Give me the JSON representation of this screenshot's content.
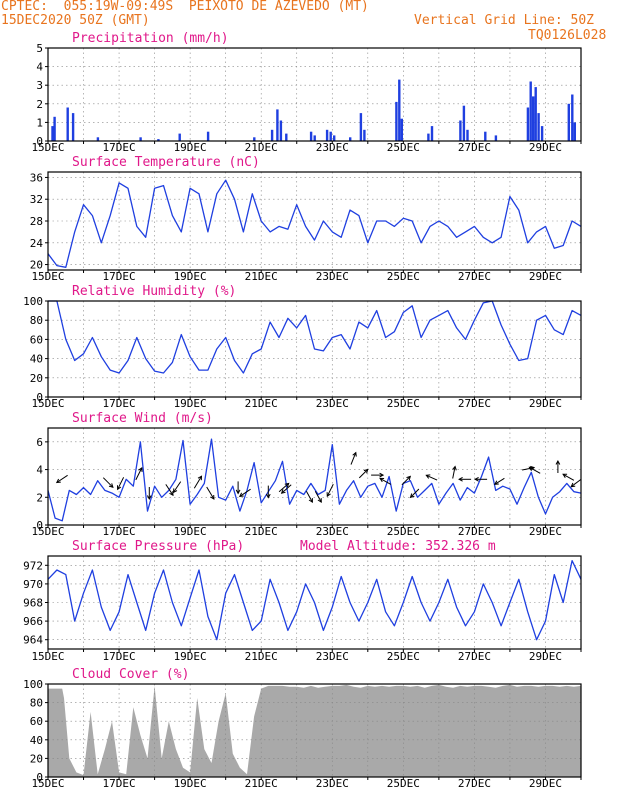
{
  "header": {
    "line1_left": "CPTEC:  055:19W-09:49S  PEIXOTO DE AZEVEDO (MT)",
    "line2_left": "15DEC2020 50Z (GMT)",
    "line2_right": "Vertical Grid Line: 50Z",
    "line3_right": "TQ0126L028"
  },
  "colors": {
    "header": "#e8741e",
    "title": "#e0188a",
    "series": "#1f3fe0",
    "bar": "#1f3fe0",
    "cloud": "#a9a9a9",
    "grid": "#888888"
  },
  "x_tick_labels": [
    "15DEC",
    "17DEC",
    "19DEC",
    "21DEC",
    "23DEC",
    "25DEC",
    "27DEC",
    "29DEC"
  ],
  "x_range_days": [
    15,
    30
  ],
  "chart_data": [
    {
      "type": "bar",
      "title": "Precipitation (mm/h)",
      "ylim": [
        0,
        5
      ],
      "yticks": [
        0,
        1,
        2,
        3,
        4,
        5
      ],
      "bars": [
        [
          15.12,
          0.8
        ],
        [
          15.18,
          1.3
        ],
        [
          15.55,
          1.8
        ],
        [
          15.7,
          1.5
        ],
        [
          16.4,
          0.2
        ],
        [
          17.6,
          0.2
        ],
        [
          18.1,
          0.1
        ],
        [
          18.7,
          0.4
        ],
        [
          19.5,
          0.5
        ],
        [
          20.8,
          0.2
        ],
        [
          21.3,
          0.6
        ],
        [
          21.45,
          1.7
        ],
        [
          21.55,
          1.1
        ],
        [
          21.7,
          0.4
        ],
        [
          22.4,
          0.5
        ],
        [
          22.5,
          0.3
        ],
        [
          22.85,
          0.6
        ],
        [
          22.95,
          0.5
        ],
        [
          23.05,
          0.3
        ],
        [
          23.5,
          0.2
        ],
        [
          23.8,
          1.5
        ],
        [
          23.9,
          0.6
        ],
        [
          24.8,
          2.1
        ],
        [
          24.88,
          3.3
        ],
        [
          24.95,
          1.2
        ],
        [
          25.7,
          0.4
        ],
        [
          25.8,
          0.8
        ],
        [
          26.6,
          1.1
        ],
        [
          26.7,
          1.9
        ],
        [
          26.8,
          0.6
        ],
        [
          27.3,
          0.5
        ],
        [
          27.6,
          0.3
        ],
        [
          28.5,
          1.8
        ],
        [
          28.58,
          3.2
        ],
        [
          28.65,
          2.4
        ],
        [
          28.72,
          2.9
        ],
        [
          28.8,
          1.5
        ],
        [
          28.9,
          0.8
        ],
        [
          29.65,
          2.0
        ],
        [
          29.75,
          2.5
        ],
        [
          29.82,
          1.0
        ]
      ]
    },
    {
      "type": "line",
      "title": "Surface Temperature (nC)",
      "ylim": [
        19,
        37
      ],
      "yticks": [
        20,
        24,
        28,
        32,
        36
      ],
      "x": [
        15,
        15.25,
        15.5,
        15.75,
        16,
        16.25,
        16.5,
        16.75,
        17,
        17.25,
        17.5,
        17.75,
        18,
        18.25,
        18.5,
        18.75,
        19,
        19.25,
        19.5,
        19.75,
        20,
        20.25,
        20.5,
        20.75,
        21,
        21.25,
        21.5,
        21.75,
        22,
        22.25,
        22.5,
        22.75,
        23,
        23.25,
        23.5,
        23.75,
        24,
        24.25,
        24.5,
        24.75,
        25,
        25.25,
        25.5,
        25.75,
        26,
        26.25,
        26.5,
        26.75,
        27,
        27.25,
        27.5,
        27.75,
        28,
        28.25,
        28.5,
        28.75,
        29,
        29.25,
        29.5,
        29.75,
        30
      ],
      "y": [
        22,
        19.8,
        19.5,
        26,
        31,
        29,
        24,
        29,
        35,
        34,
        27,
        25,
        34,
        34.5,
        29,
        26,
        34,
        33,
        26,
        33,
        35.5,
        32,
        26,
        33,
        28,
        26,
        27,
        26.5,
        31,
        27,
        24.5,
        28,
        26,
        25,
        30,
        29,
        24,
        28,
        28,
        27,
        28.5,
        28,
        24,
        27,
        28,
        27,
        25,
        26,
        27,
        25,
        24,
        25,
        32.5,
        30,
        24,
        26,
        27,
        23,
        23.5,
        28,
        27
      ]
    },
    {
      "type": "line",
      "title": "Relative Humidity (%)",
      "ylim": [
        0,
        100
      ],
      "yticks": [
        0,
        20,
        40,
        60,
        80,
        100
      ],
      "x": [
        15,
        15.25,
        15.5,
        15.75,
        16,
        16.25,
        16.5,
        16.75,
        17,
        17.25,
        17.5,
        17.75,
        18,
        18.25,
        18.5,
        18.75,
        19,
        19.25,
        19.5,
        19.75,
        20,
        20.25,
        20.5,
        20.75,
        21,
        21.25,
        21.5,
        21.75,
        22,
        22.25,
        22.5,
        22.75,
        23,
        23.25,
        23.5,
        23.75,
        24,
        24.25,
        24.5,
        24.75,
        25,
        25.25,
        25.5,
        25.75,
        26,
        26.25,
        26.5,
        26.75,
        27,
        27.25,
        27.5,
        27.75,
        28,
        28.25,
        28.5,
        28.75,
        29,
        29.25,
        29.5,
        29.75,
        30
      ],
      "y": [
        100,
        100,
        60,
        38,
        45,
        62,
        42,
        28,
        25,
        38,
        62,
        40,
        27,
        25,
        36,
        65,
        42,
        28,
        28,
        50,
        62,
        38,
        25,
        45,
        50,
        78,
        62,
        82,
        72,
        85,
        50,
        48,
        62,
        65,
        50,
        78,
        72,
        90,
        62,
        68,
        88,
        95,
        62,
        80,
        85,
        90,
        72,
        60,
        80,
        98,
        100,
        75,
        55,
        38,
        40,
        80,
        85,
        70,
        65,
        90,
        85
      ]
    },
    {
      "type": "line",
      "title": "Surface Wind (m/s)",
      "ylim": [
        0,
        7
      ],
      "yticks": [
        0,
        2,
        4,
        6
      ],
      "x": [
        15,
        15.2,
        15.4,
        15.6,
        15.8,
        16,
        16.2,
        16.4,
        16.6,
        16.8,
        17,
        17.2,
        17.4,
        17.6,
        17.8,
        18,
        18.2,
        18.4,
        18.6,
        18.8,
        19,
        19.2,
        19.4,
        19.6,
        19.8,
        20,
        20.2,
        20.4,
        20.6,
        20.8,
        21,
        21.2,
        21.4,
        21.6,
        21.8,
        22,
        22.2,
        22.4,
        22.6,
        22.8,
        23,
        23.2,
        23.4,
        23.6,
        23.8,
        24,
        24.2,
        24.4,
        24.6,
        24.8,
        25,
        25.2,
        25.4,
        25.6,
        25.8,
        26,
        26.2,
        26.4,
        26.6,
        26.8,
        27,
        27.2,
        27.4,
        27.6,
        27.8,
        28,
        28.2,
        28.4,
        28.6,
        28.8,
        29,
        29.2,
        29.4,
        29.6,
        29.8,
        30
      ],
      "y": [
        2.5,
        0.5,
        0.3,
        2.5,
        2.2,
        2.7,
        2.2,
        3.2,
        2.5,
        2.3,
        2.0,
        3.3,
        2.8,
        6.0,
        1.0,
        2.8,
        2.0,
        2.5,
        3.3,
        6.1,
        1.5,
        2.2,
        3.0,
        6.2,
        2.0,
        1.8,
        2.8,
        1.0,
        2.5,
        4.5,
        1.6,
        2.4,
        3.2,
        4.6,
        1.5,
        2.5,
        2.2,
        3.0,
        2.2,
        2.5,
        5.8,
        1.5,
        2.5,
        3.2,
        2.0,
        2.8,
        3.0,
        2.0,
        3.5,
        1.0,
        3.0,
        3.2,
        2.0,
        2.5,
        3.0,
        1.5,
        2.3,
        3.0,
        1.8,
        2.7,
        2.3,
        3.5,
        4.9,
        2.5,
        2.8,
        2.6,
        1.5,
        2.7,
        3.8,
        2.0,
        0.8,
        2.0,
        2.4,
        3.0,
        2.4,
        2.3
      ],
      "arrows": [
        [
          15.5,
          3.5,
          -0.9,
          -0.6
        ],
        [
          16.6,
          3.3,
          0.8,
          -0.8
        ],
        [
          17.1,
          3.3,
          -0.5,
          -1.0
        ],
        [
          17.5,
          3.4,
          0.5,
          1.0
        ],
        [
          17.85,
          2.6,
          0,
          -1.0
        ],
        [
          18.35,
          2.8,
          0.6,
          -0.9
        ],
        [
          18.7,
          3.0,
          -0.6,
          -0.9
        ],
        [
          19.15,
          2.8,
          0.6,
          1.0
        ],
        [
          19.5,
          2.6,
          0.6,
          -1.0
        ],
        [
          20.35,
          3.0,
          0,
          -1.0
        ],
        [
          20.65,
          2.5,
          -0.9,
          -0.6
        ],
        [
          21.2,
          2.7,
          0,
          -1.0
        ],
        [
          21.55,
          2.5,
          0.8,
          0.7
        ],
        [
          21.8,
          2.8,
          -0.8,
          -0.7
        ],
        [
          22.3,
          2.3,
          0.5,
          -0.9
        ],
        [
          22.55,
          2.3,
          0.5,
          -0.9
        ],
        [
          23.0,
          2.8,
          -0.5,
          -1.0
        ],
        [
          23.55,
          4.5,
          0.4,
          1.0
        ],
        [
          23.8,
          3.5,
          0.7,
          0.7
        ],
        [
          24.15,
          3.6,
          1.0,
          0
        ],
        [
          24.6,
          3.0,
          -0.9,
          0.5
        ],
        [
          25.0,
          3.0,
          0.7,
          0.7
        ],
        [
          25.4,
          2.5,
          -0.7,
          -0.7
        ],
        [
          25.9,
          3.3,
          -0.9,
          0.4
        ],
        [
          26.4,
          3.5,
          0.2,
          1.0
        ],
        [
          26.85,
          3.3,
          -1.0,
          0
        ],
        [
          27.3,
          3.3,
          -1.0,
          0
        ],
        [
          27.8,
          3.3,
          -0.8,
          -0.5
        ],
        [
          28.4,
          4.0,
          1.0,
          0.2
        ],
        [
          28.8,
          3.8,
          -0.9,
          0.5
        ],
        [
          29.35,
          3.9,
          0,
          1.0
        ],
        [
          29.75,
          3.3,
          -0.9,
          0.5
        ],
        [
          29.95,
          3.2,
          -0.8,
          -0.6
        ]
      ]
    },
    {
      "type": "line",
      "title": "Surface Pressure (hPa)",
      "subtitle": "Model Altitude: 352.326 m",
      "ylim": [
        963,
        973
      ],
      "yticks": [
        964,
        966,
        968,
        970,
        972
      ],
      "x": [
        15,
        15.25,
        15.5,
        15.75,
        16,
        16.25,
        16.5,
        16.75,
        17,
        17.25,
        17.5,
        17.75,
        18,
        18.25,
        18.5,
        18.75,
        19,
        19.25,
        19.5,
        19.75,
        20,
        20.25,
        20.5,
        20.75,
        21,
        21.25,
        21.5,
        21.75,
        22,
        22.25,
        22.5,
        22.75,
        23,
        23.25,
        23.5,
        23.75,
        24,
        24.25,
        24.5,
        24.75,
        25,
        25.25,
        25.5,
        25.75,
        26,
        26.25,
        26.5,
        26.75,
        27,
        27.25,
        27.5,
        27.75,
        28,
        28.25,
        28.5,
        28.75,
        29,
        29.25,
        29.5,
        29.75,
        30
      ],
      "y": [
        970.5,
        971.5,
        971,
        966,
        969,
        971.5,
        967.5,
        965,
        967,
        971,
        968,
        965,
        969,
        971.5,
        968,
        965.5,
        968.5,
        971.5,
        966.5,
        964,
        969,
        971,
        968,
        965,
        966,
        970.5,
        968,
        965,
        967,
        970,
        968,
        965,
        967.5,
        970.8,
        968,
        966,
        968,
        970.5,
        967,
        965.5,
        968,
        970.8,
        968,
        966,
        968,
        970.5,
        967.5,
        965.5,
        967,
        970,
        968,
        965.5,
        968,
        970.5,
        967,
        964,
        966,
        971,
        968,
        972.5,
        970.5
      ]
    },
    {
      "type": "area",
      "title": "Cloud Cover (%)",
      "ylim": [
        0,
        100
      ],
      "yticks": [
        0,
        20,
        40,
        60,
        80,
        100
      ],
      "x": [
        15,
        15.4,
        15.45,
        15.6,
        15.8,
        16,
        16.2,
        16.4,
        16.6,
        16.8,
        17,
        17.2,
        17.4,
        17.6,
        17.8,
        18,
        18.2,
        18.4,
        18.6,
        18.8,
        19,
        19.2,
        19.4,
        19.6,
        19.8,
        20,
        20.2,
        20.4,
        20.6,
        20.8,
        21,
        21.2,
        21.4,
        21.6,
        21.8,
        22,
        22.2,
        22.4,
        22.6,
        22.8,
        23,
        23.2,
        23.4,
        23.6,
        23.8,
        24,
        24.2,
        24.4,
        24.6,
        24.8,
        25,
        25.2,
        25.4,
        25.6,
        25.8,
        26,
        26.2,
        26.4,
        26.6,
        26.8,
        27,
        27.2,
        27.4,
        27.6,
        27.8,
        28,
        28.2,
        28.4,
        28.6,
        28.8,
        29,
        29.2,
        29.4,
        29.6,
        29.8,
        30
      ],
      "y": [
        95,
        95,
        85,
        20,
        5,
        2,
        70,
        3,
        30,
        60,
        5,
        3,
        75,
        45,
        20,
        98,
        20,
        60,
        30,
        10,
        5,
        85,
        30,
        15,
        60,
        90,
        25,
        10,
        3,
        65,
        95,
        98,
        98,
        98,
        97,
        97,
        96,
        98,
        96,
        97,
        98,
        98,
        99,
        97,
        96,
        98,
        97,
        98,
        97,
        98,
        98,
        97,
        98,
        96,
        98,
        99,
        97,
        96,
        98,
        97,
        98,
        98,
        97,
        96,
        98,
        99,
        97,
        98,
        98,
        97,
        98,
        98,
        97,
        98,
        97,
        98
      ]
    }
  ]
}
